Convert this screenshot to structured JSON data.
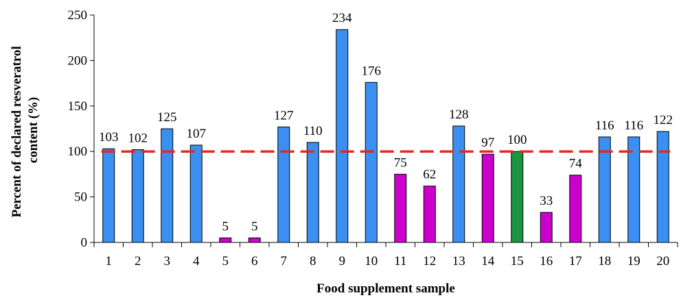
{
  "chart_data": {
    "type": "bar",
    "xlabel": "Food supplement sample",
    "ylabel_lines": [
      "Percent of declared resveratrol",
      "content (%)"
    ],
    "ylim": [
      0,
      250
    ],
    "yticks": [
      0,
      50,
      100,
      150,
      200,
      250
    ],
    "categories": [
      "1",
      "2",
      "3",
      "4",
      "5",
      "6",
      "7",
      "8",
      "9",
      "10",
      "11",
      "12",
      "13",
      "14",
      "15",
      "16",
      "17",
      "18",
      "19",
      "20"
    ],
    "values": [
      103,
      102,
      125,
      107,
      5,
      5,
      127,
      110,
      234,
      176,
      75,
      62,
      128,
      97,
      100,
      33,
      74,
      116,
      116,
      122
    ],
    "bar_colors": [
      "#3b8ff0",
      "#3b8ff0",
      "#3b8ff0",
      "#3b8ff0",
      "#cc00cc",
      "#cc00cc",
      "#3b8ff0",
      "#3b8ff0",
      "#3b8ff0",
      "#3b8ff0",
      "#cc00cc",
      "#cc00cc",
      "#3b8ff0",
      "#cc00cc",
      "#1a9641",
      "#cc00cc",
      "#cc00cc",
      "#3b8ff0",
      "#3b8ff0",
      "#3b8ff0"
    ],
    "reference_line": {
      "value": 100,
      "color": "#e8251f",
      "style": "dashed"
    },
    "grid": false
  }
}
